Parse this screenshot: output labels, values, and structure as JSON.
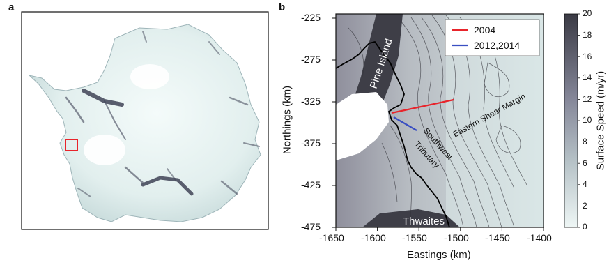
{
  "panel_a": {
    "label": "a"
  },
  "panel_b": {
    "label": "b",
    "x_ticks": [
      "-1650",
      "-1600",
      "-1550",
      "-1500",
      "-1450",
      "-1400"
    ],
    "y_ticks": [
      "-225",
      "-275",
      "-325",
      "-375",
      "-425",
      "-475"
    ],
    "xlabel": "Eastings (km)",
    "ylabel": "Northings (km)",
    "legend": [
      {
        "label": "2004",
        "color": "#e8242b"
      },
      {
        "label": "2012,2014",
        "color": "#3a4fc2"
      }
    ],
    "annotations": {
      "pine_island": "Pine Island",
      "eastern_shear_margin": "Eastern Shear Margin",
      "southwest": "Southwest",
      "tributary": "Tributary",
      "thwaites": "Thwaites"
    }
  },
  "colorbar": {
    "title": "Surface Speed (m/yr)",
    "ticks": [
      "0",
      "2",
      "4",
      "6",
      "8",
      "10",
      "12",
      "14",
      "16",
      "18",
      "20"
    ],
    "min": 0,
    "max": 20,
    "color_low": "#eef6f5",
    "color_high": "#3a3a44"
  }
}
